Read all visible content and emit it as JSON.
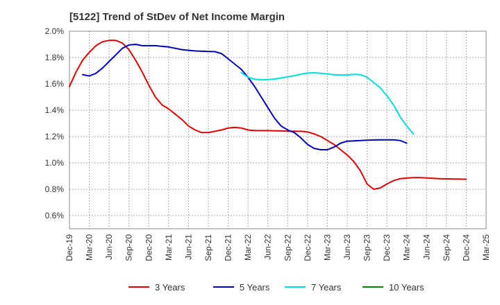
{
  "chart_data": {
    "type": "line",
    "title": "[5122]  Trend of StDev of Net Income Margin",
    "xlabel": "",
    "ylabel": "",
    "x_ticks": [
      "Dec-19",
      "Mar-20",
      "Jun-20",
      "Sep-20",
      "Dec-20",
      "Mar-21",
      "Jun-21",
      "Sep-21",
      "Dec-21",
      "Mar-22",
      "Jun-22",
      "Sep-22",
      "Dec-22",
      "Mar-23",
      "Jun-23",
      "Sep-23",
      "Dec-23",
      "Mar-24",
      "Jun-24",
      "Sep-24",
      "Dec-24",
      "Mar-25"
    ],
    "y_ticks": [
      "0.6%",
      "0.8%",
      "1.0%",
      "1.2%",
      "1.4%",
      "1.6%",
      "1.8%",
      "2.0%"
    ],
    "ylim": [
      0.5,
      2.0
    ],
    "y_tick_values": [
      0.6,
      0.8,
      1.0,
      1.2,
      1.4,
      1.6,
      1.8,
      2.0
    ],
    "grid": true,
    "legend_position": "bottom",
    "series": [
      {
        "name": "3 Years",
        "color": "#dd0000",
        "values": [
          1.58,
          1.69,
          1.78,
          1.84,
          1.89,
          1.92,
          1.93,
          1.93,
          1.91,
          1.86,
          1.78,
          1.69,
          1.59,
          1.5,
          1.44,
          1.41,
          1.37,
          1.33,
          1.28,
          1.25,
          1.23,
          1.23,
          1.24,
          1.25,
          1.265,
          1.27,
          1.265,
          1.25,
          1.245,
          1.245,
          1.245,
          1.243,
          1.243,
          1.24,
          1.24,
          1.24,
          1.235,
          1.22,
          1.2,
          1.17,
          1.14,
          1.1,
          1.06,
          1.01,
          0.94,
          0.84,
          0.8,
          0.81,
          0.84,
          0.865,
          0.88,
          0.885,
          0.888,
          0.888,
          0.886,
          0.883,
          0.88,
          0.879,
          0.878,
          0.877,
          0.876
        ]
      },
      {
        "name": "5 Years",
        "color": "#0000bb",
        "values": [
          null,
          null,
          1.67,
          1.66,
          1.68,
          1.72,
          1.77,
          1.82,
          1.87,
          1.895,
          1.9,
          1.89,
          1.89,
          1.89,
          1.885,
          1.88,
          1.87,
          1.86,
          1.855,
          1.85,
          1.848,
          1.846,
          1.845,
          1.83,
          1.79,
          1.75,
          1.71,
          1.65,
          1.58,
          1.5,
          1.42,
          1.34,
          1.28,
          1.25,
          1.23,
          1.19,
          1.14,
          1.11,
          1.1,
          1.1,
          1.12,
          1.15,
          1.165,
          1.167,
          1.17,
          1.172,
          1.174,
          1.175,
          1.175,
          1.175,
          1.17,
          1.15
        ]
      },
      {
        "name": "7 Years",
        "color": "#00dddd",
        "values": [
          null,
          null,
          null,
          null,
          null,
          null,
          null,
          null,
          null,
          null,
          null,
          null,
          null,
          null,
          null,
          null,
          null,
          null,
          null,
          null,
          null,
          null,
          null,
          null,
          null,
          null,
          1.685,
          1.65,
          1.635,
          1.63,
          1.632,
          1.637,
          1.645,
          1.653,
          1.662,
          1.673,
          1.682,
          1.684,
          1.68,
          1.675,
          1.67,
          1.668,
          1.667,
          1.672,
          1.67,
          1.65,
          1.61,
          1.57,
          1.51,
          1.44,
          1.35,
          1.28,
          1.22
        ]
      },
      {
        "name": "10 Years",
        "color": "#008000",
        "values": []
      }
    ]
  }
}
